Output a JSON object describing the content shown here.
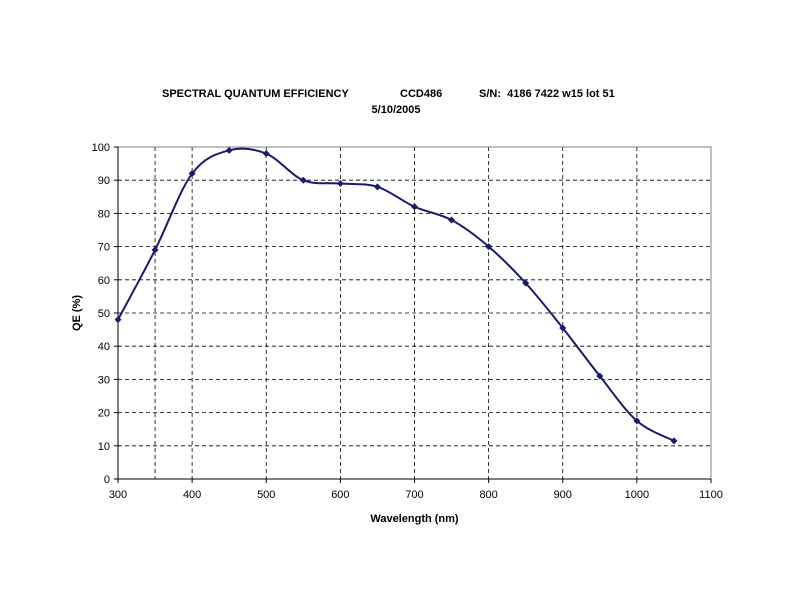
{
  "chart_data": {
    "type": "line",
    "title": "SPECTRAL QUANTUM EFFICIENCY",
    "device": "CCD486",
    "serial": "S/N:  4186 7422 w15 lot 51",
    "subtitle": "5/10/2005",
    "xlabel": "Wavelength (nm)",
    "ylabel": "QE (%)",
    "xlim": [
      300,
      1100
    ],
    "ylim": [
      0,
      100
    ],
    "xticks": [
      300,
      400,
      500,
      600,
      700,
      800,
      900,
      1000,
      1100
    ],
    "yticks": [
      0,
      10,
      20,
      30,
      40,
      50,
      60,
      70,
      80,
      90,
      100
    ],
    "x_gridlines": [
      350,
      400,
      500,
      600,
      700,
      800,
      900,
      1000
    ],
    "grid": true,
    "line_color": "#1a1a6e",
    "series": [
      {
        "x": [
          300,
          350,
          400,
          450,
          500,
          550,
          600,
          650,
          700,
          750,
          800,
          850,
          900,
          950,
          1000,
          1050
        ],
        "y": [
          48,
          69,
          92,
          99,
          98,
          90,
          89,
          88,
          82,
          78,
          70,
          59,
          45.5,
          31,
          17.5,
          11.5
        ]
      }
    ]
  }
}
